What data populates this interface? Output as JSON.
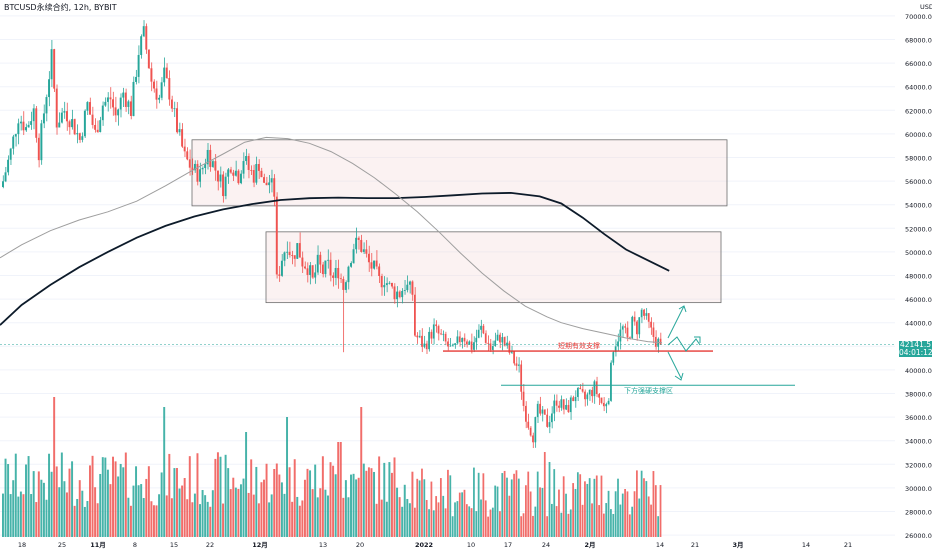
{
  "symbol_title": "BTCUSD永续合约, 12h, BYBIT",
  "currency_label": "USD",
  "last_price_label": "42141.5",
  "countdown_label": "04:01:12",
  "colors": {
    "up": "#26a69a",
    "down": "#ef5350",
    "ma_slow": "#0d1b2a",
    "ma_fast": "#9e9e9e",
    "zone_fill": "rgba(244,214,214,0.32)",
    "zone_border": "#6d6d6d",
    "short_support": "#e53935",
    "strong_support": "#26a69a",
    "arrows": "#26a69a",
    "grid": "#f0f3fa",
    "axis_text": "#131722"
  },
  "chart_data": {
    "type": "candlestick",
    "title": "BTCUSD永续合约, 12h, BYBIT",
    "y_axis": {
      "ticks": [
        "26000.0",
        "28000.0",
        "30000.0",
        "32000.0",
        "34000.0",
        "36000.0",
        "38000.0",
        "40000.0",
        "42000.0",
        "44000.0",
        "46000.0",
        "48000.0",
        "50000.0",
        "52000.0",
        "54000.0",
        "56000.0",
        "58000.0",
        "60000.0",
        "62000.0",
        "64000.0",
        "66000.0",
        "68000.0",
        "70000.0"
      ],
      "range": [
        25800,
        70800
      ],
      "unit": "USD"
    },
    "x_axis": {
      "ticks": [
        "18",
        "25",
        "11月",
        "8",
        "15",
        "22",
        "12月",
        "13",
        "20",
        "2022",
        "10",
        "17",
        "24",
        "2月",
        "14",
        "21",
        "3月",
        "14",
        "21"
      ],
      "range": [
        "2021-10-14",
        "2022-03-27"
      ]
    },
    "annotations": [
      {
        "type": "zone",
        "x_start": "2021-11-16",
        "x_end": "2022-03-03",
        "y_low": 53900,
        "y_high": 59500
      },
      {
        "type": "zone",
        "x_start": "2021-12-05",
        "x_end": "2022-03-02",
        "y_low": 45700,
        "y_high": 51700
      },
      {
        "type": "hline",
        "label": "短期有效支撑",
        "value": 41600,
        "x_start": "2022-01-06",
        "x_end": "2022-02-24",
        "color": "short_support"
      },
      {
        "type": "hline",
        "label": "下方强硬支撑区",
        "value": 38700,
        "x_start": "2022-01-18",
        "x_end": "2022-03-20",
        "color": "strong_support"
      }
    ],
    "last_price": 42141.5,
    "moving_averages": [
      {
        "points": [
          [
            0,
            43800
          ],
          [
            6,
            45500
          ],
          [
            14,
            47200
          ],
          [
            22,
            48700
          ],
          [
            30,
            50000
          ],
          [
            38,
            51200
          ],
          [
            46,
            52200
          ],
          [
            54,
            53000
          ],
          [
            62,
            53600
          ],
          [
            70,
            54050
          ],
          [
            78,
            54400
          ],
          [
            86,
            54550
          ],
          [
            94,
            54600
          ],
          [
            102,
            54560
          ],
          [
            110,
            54560
          ],
          [
            118,
            54650
          ],
          [
            126,
            54800
          ],
          [
            134,
            54950
          ],
          [
            142,
            55000
          ],
          [
            150,
            54700
          ],
          [
            156,
            54100
          ],
          [
            162,
            52900
          ],
          [
            168,
            51500
          ],
          [
            174,
            50200
          ],
          [
            180,
            49300
          ],
          [
            186,
            48400
          ]
        ]
      },
      {
        "points": [
          [
            0,
            49500
          ],
          [
            6,
            50600
          ],
          [
            14,
            51800
          ],
          [
            22,
            52700
          ],
          [
            30,
            53400
          ],
          [
            38,
            54300
          ],
          [
            46,
            55600
          ],
          [
            54,
            57000
          ],
          [
            62,
            58300
          ],
          [
            68,
            59300
          ],
          [
            74,
            59700
          ],
          [
            80,
            59600
          ],
          [
            86,
            59200
          ],
          [
            92,
            58500
          ],
          [
            98,
            57500
          ],
          [
            104,
            56300
          ],
          [
            110,
            54900
          ],
          [
            116,
            53400
          ],
          [
            122,
            51700
          ],
          [
            128,
            49900
          ],
          [
            134,
            48200
          ],
          [
            140,
            46700
          ],
          [
            146,
            45400
          ],
          [
            152,
            44500
          ],
          [
            156,
            44000
          ],
          [
            162,
            43500
          ],
          [
            168,
            43100
          ],
          [
            174,
            42700
          ],
          [
            180,
            42400
          ],
          [
            184,
            42300
          ]
        ]
      }
    ]
  }
}
